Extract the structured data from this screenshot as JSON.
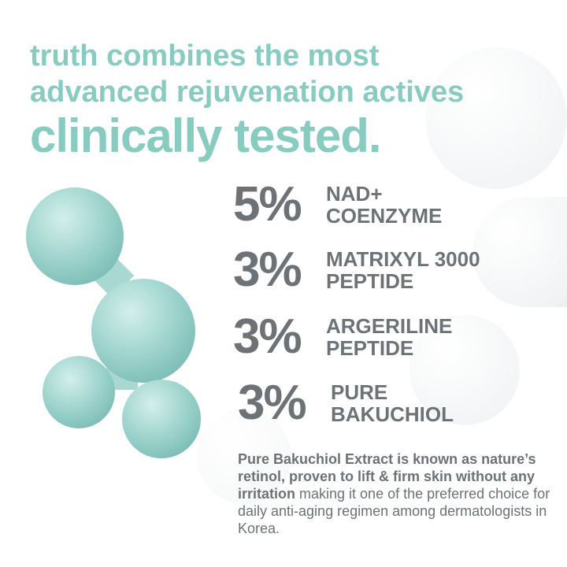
{
  "headline": {
    "line1": "truth combines the most",
    "line2": "advanced rejuvenation actives",
    "line3": "clinically tested."
  },
  "ingredients": [
    {
      "percent": "5%",
      "name_line1": "NAD+",
      "name_line2": "COENZYME"
    },
    {
      "percent": "3%",
      "name_line1": "MATRIXYL 3000",
      "name_line2": "PEPTIDE"
    },
    {
      "percent": "3%",
      "name_line1": "ARGERILINE",
      "name_line2": "PEPTIDE"
    },
    {
      "percent": "3%",
      "name_line1": "PURE",
      "name_line2": "BAKUCHIOL"
    }
  ],
  "description": {
    "bold": "Pure Bakuchiol Extract is known as nature’s retinol, proven to lift & firm skin without any irritation",
    "regular": " making it one of the preferred choice for daily anti-aging regimen among dermatologists in Korea."
  },
  "colors": {
    "accent": "#88cbc0",
    "text": "#6d7276",
    "molecule": "#9fd3cd"
  },
  "icons": [
    "molecule-illustration"
  ]
}
